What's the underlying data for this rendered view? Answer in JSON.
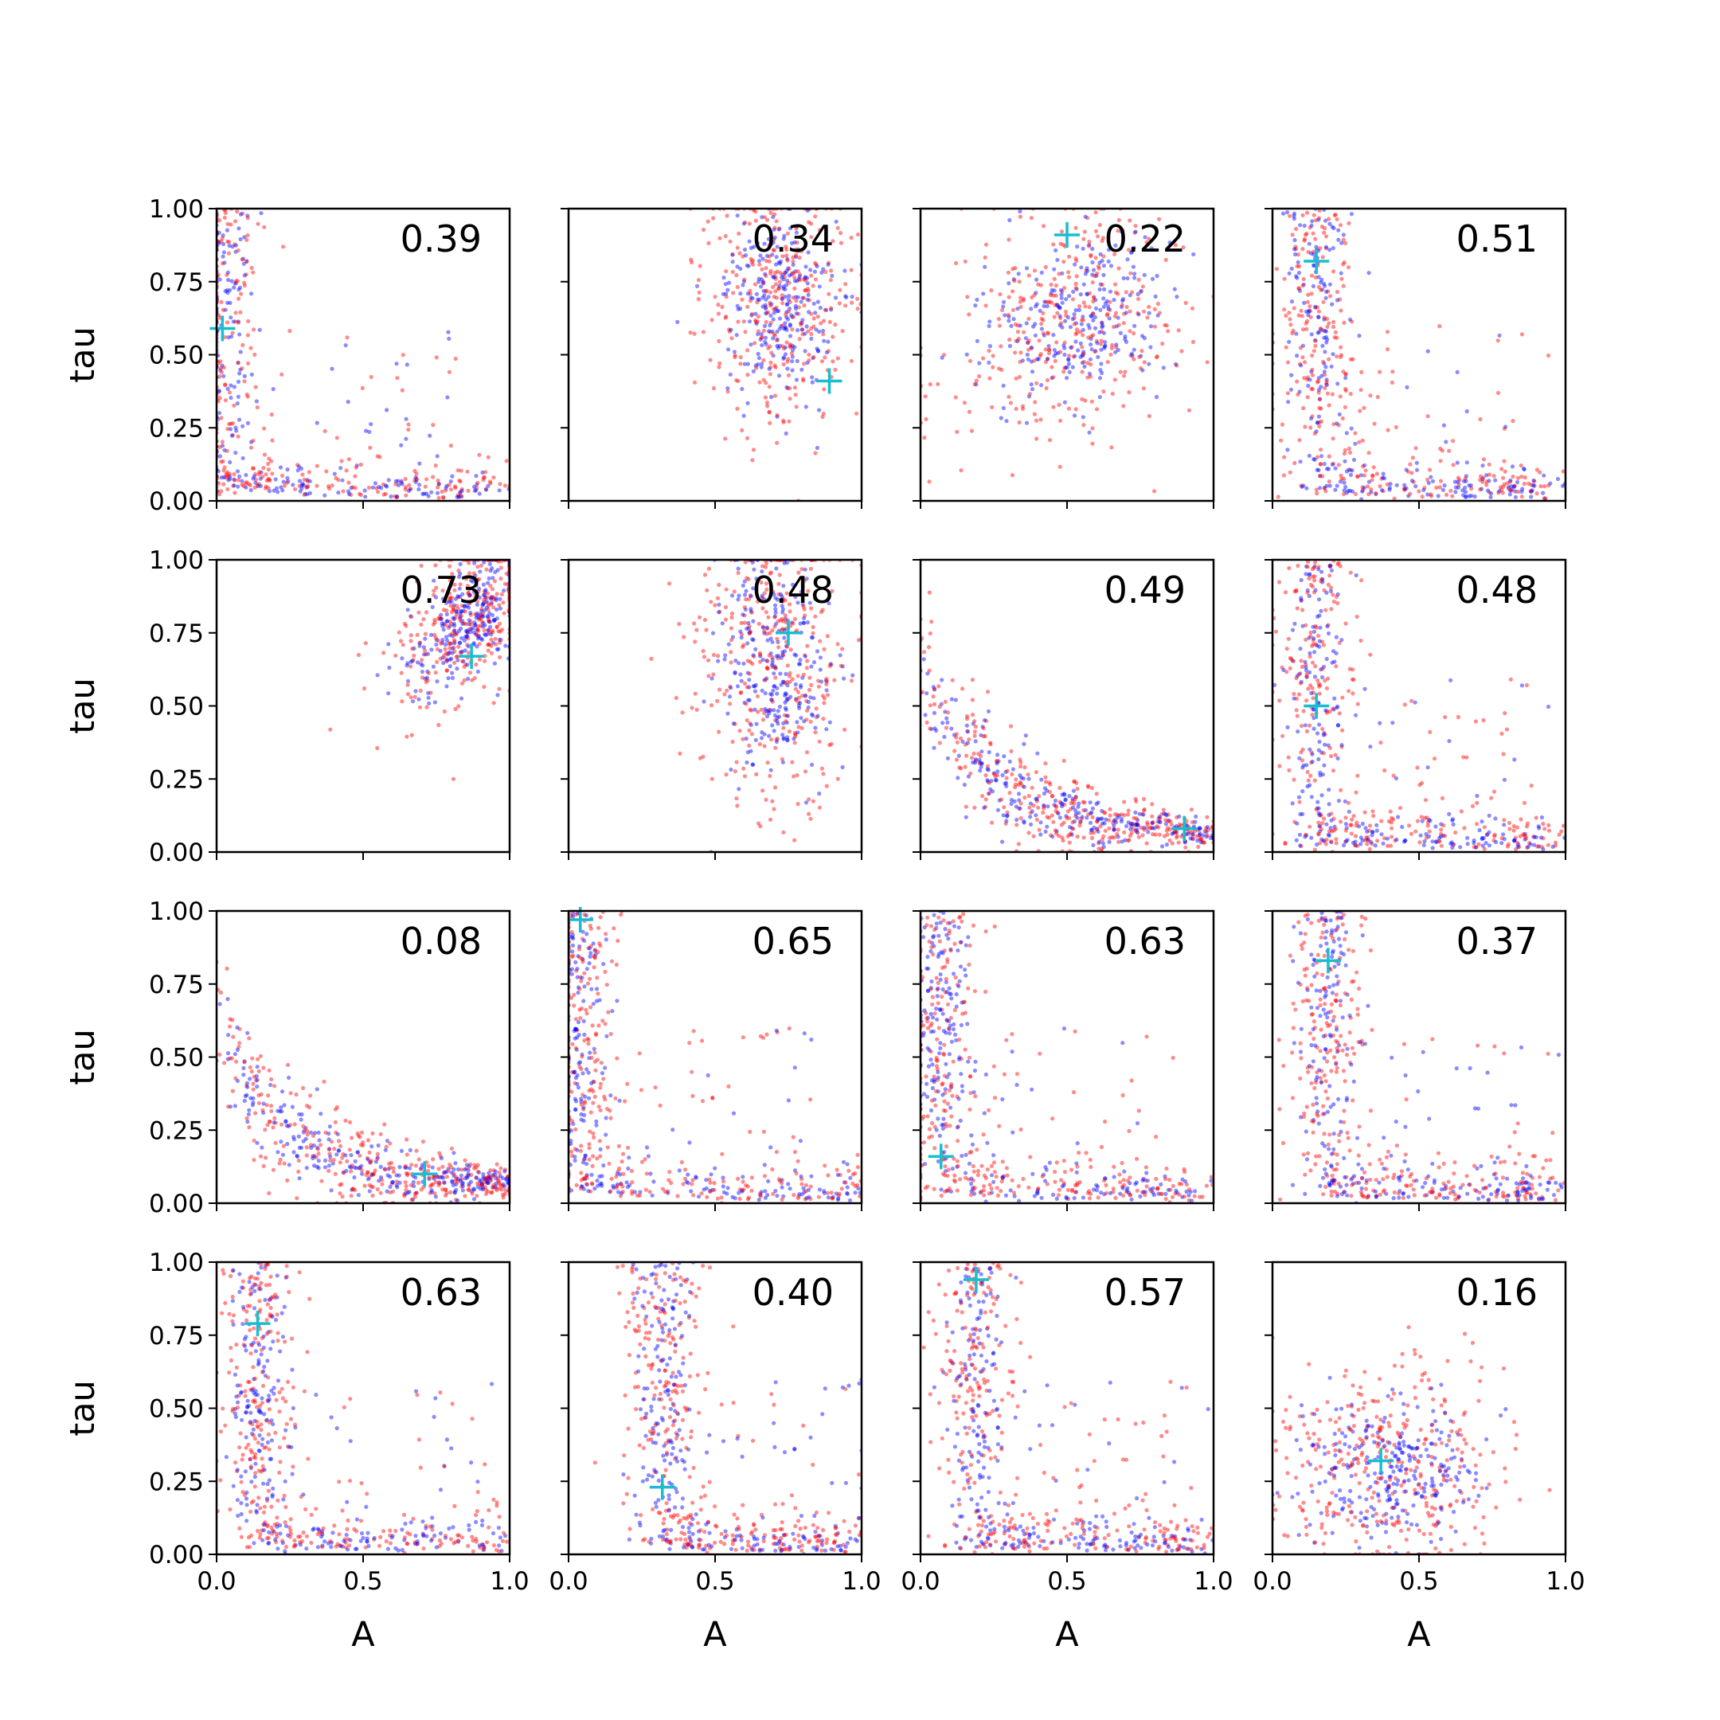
{
  "figure": {
    "xlabel": "A",
    "ylabel": "tau",
    "xticks": [
      "0.0",
      "0.5",
      "1.0"
    ],
    "yticks": [
      "0.00",
      "0.25",
      "0.50",
      "0.75",
      "1.00"
    ],
    "series_colors": {
      "red": "#ff0000",
      "blue": "#0000ff",
      "marker": "#17becf"
    }
  },
  "chart_data": [
    {
      "type": "scatter",
      "row": 0,
      "col": 0,
      "correlation": "0.39",
      "xlim": [
        0,
        1
      ],
      "ylim": [
        0,
        1
      ],
      "pattern": "L",
      "marker": [
        0.02,
        0.59
      ]
    },
    {
      "type": "scatter",
      "row": 0,
      "col": 1,
      "correlation": "0.34",
      "xlim": [
        0,
        1
      ],
      "ylim": [
        0,
        1
      ],
      "pattern": "cloud",
      "center": [
        0.72,
        0.68
      ],
      "spread": [
        0.09,
        0.15
      ],
      "tilt": -1.4,
      "marker": [
        0.89,
        0.41
      ]
    },
    {
      "type": "scatter",
      "row": 0,
      "col": 2,
      "correlation": "0.22",
      "xlim": [
        0,
        1
      ],
      "ylim": [
        0,
        1
      ],
      "pattern": "cloud",
      "center": [
        0.52,
        0.62
      ],
      "spread": [
        0.13,
        0.15
      ],
      "tilt": -0.6,
      "marker": [
        0.5,
        0.91
      ]
    },
    {
      "type": "scatter",
      "row": 0,
      "col": 3,
      "correlation": "0.51",
      "xlim": [
        0,
        1
      ],
      "ylim": [
        0,
        1
      ],
      "pattern": "L",
      "marker": [
        0.15,
        0.82
      ]
    },
    {
      "type": "scatter",
      "row": 1,
      "col": 0,
      "correlation": "0.73",
      "xlim": [
        0,
        1
      ],
      "ylim": [
        0,
        1
      ],
      "pattern": "cloud",
      "center": [
        0.86,
        0.8
      ],
      "spread": [
        0.07,
        0.12
      ],
      "tilt": -0.5,
      "marker": [
        0.87,
        0.67
      ]
    },
    {
      "type": "scatter",
      "row": 1,
      "col": 1,
      "correlation": "0.48",
      "xlim": [
        0,
        1
      ],
      "ylim": [
        0,
        1
      ],
      "pattern": "cloud",
      "center": [
        0.7,
        0.65
      ],
      "spread": [
        0.09,
        0.18
      ],
      "tilt": -1.6,
      "marker": [
        0.75,
        0.75
      ]
    },
    {
      "type": "scatter",
      "row": 1,
      "col": 2,
      "correlation": "0.49",
      "xlim": [
        0,
        1
      ],
      "ylim": [
        0,
        1
      ],
      "pattern": "curve",
      "marker": [
        0.9,
        0.08
      ]
    },
    {
      "type": "scatter",
      "row": 1,
      "col": 3,
      "correlation": "0.48",
      "xlim": [
        0,
        1
      ],
      "ylim": [
        0,
        1
      ],
      "pattern": "L",
      "marker": [
        0.15,
        0.5
      ]
    },
    {
      "type": "scatter",
      "row": 2,
      "col": 0,
      "correlation": "0.08",
      "xlim": [
        0,
        1
      ],
      "ylim": [
        0,
        1
      ],
      "pattern": "curve",
      "marker": [
        0.71,
        0.1
      ]
    },
    {
      "type": "scatter",
      "row": 2,
      "col": 1,
      "correlation": "0.65",
      "xlim": [
        0,
        1
      ],
      "ylim": [
        0,
        1
      ],
      "pattern": "L",
      "marker": [
        0.04,
        0.97
      ]
    },
    {
      "type": "scatter",
      "row": 2,
      "col": 2,
      "correlation": "0.63",
      "xlim": [
        0,
        1
      ],
      "ylim": [
        0,
        1
      ],
      "pattern": "L",
      "marker": [
        0.07,
        0.16
      ]
    },
    {
      "type": "scatter",
      "row": 2,
      "col": 3,
      "correlation": "0.37",
      "xlim": [
        0,
        1
      ],
      "ylim": [
        0,
        1
      ],
      "pattern": "L",
      "marker": [
        0.19,
        0.83
      ]
    },
    {
      "type": "scatter",
      "row": 3,
      "col": 0,
      "correlation": "0.63",
      "xlim": [
        0,
        1
      ],
      "ylim": [
        0,
        1
      ],
      "pattern": "L",
      "marker": [
        0.14,
        0.79
      ]
    },
    {
      "type": "scatter",
      "row": 3,
      "col": 1,
      "correlation": "0.40",
      "xlim": [
        0,
        1
      ],
      "ylim": [
        0,
        1
      ],
      "pattern": "L",
      "marker": [
        0.32,
        0.23
      ]
    },
    {
      "type": "scatter",
      "row": 3,
      "col": 2,
      "correlation": "0.57",
      "xlim": [
        0,
        1
      ],
      "ylim": [
        0,
        1
      ],
      "pattern": "L",
      "marker": [
        0.19,
        0.94
      ]
    },
    {
      "type": "scatter",
      "row": 3,
      "col": 3,
      "correlation": "0.16",
      "xlim": [
        0,
        1
      ],
      "ylim": [
        0,
        1
      ],
      "pattern": "cloud",
      "center": [
        0.4,
        0.3
      ],
      "spread": [
        0.14,
        0.12
      ],
      "tilt": -0.7,
      "marker": [
        0.37,
        0.32
      ]
    }
  ]
}
